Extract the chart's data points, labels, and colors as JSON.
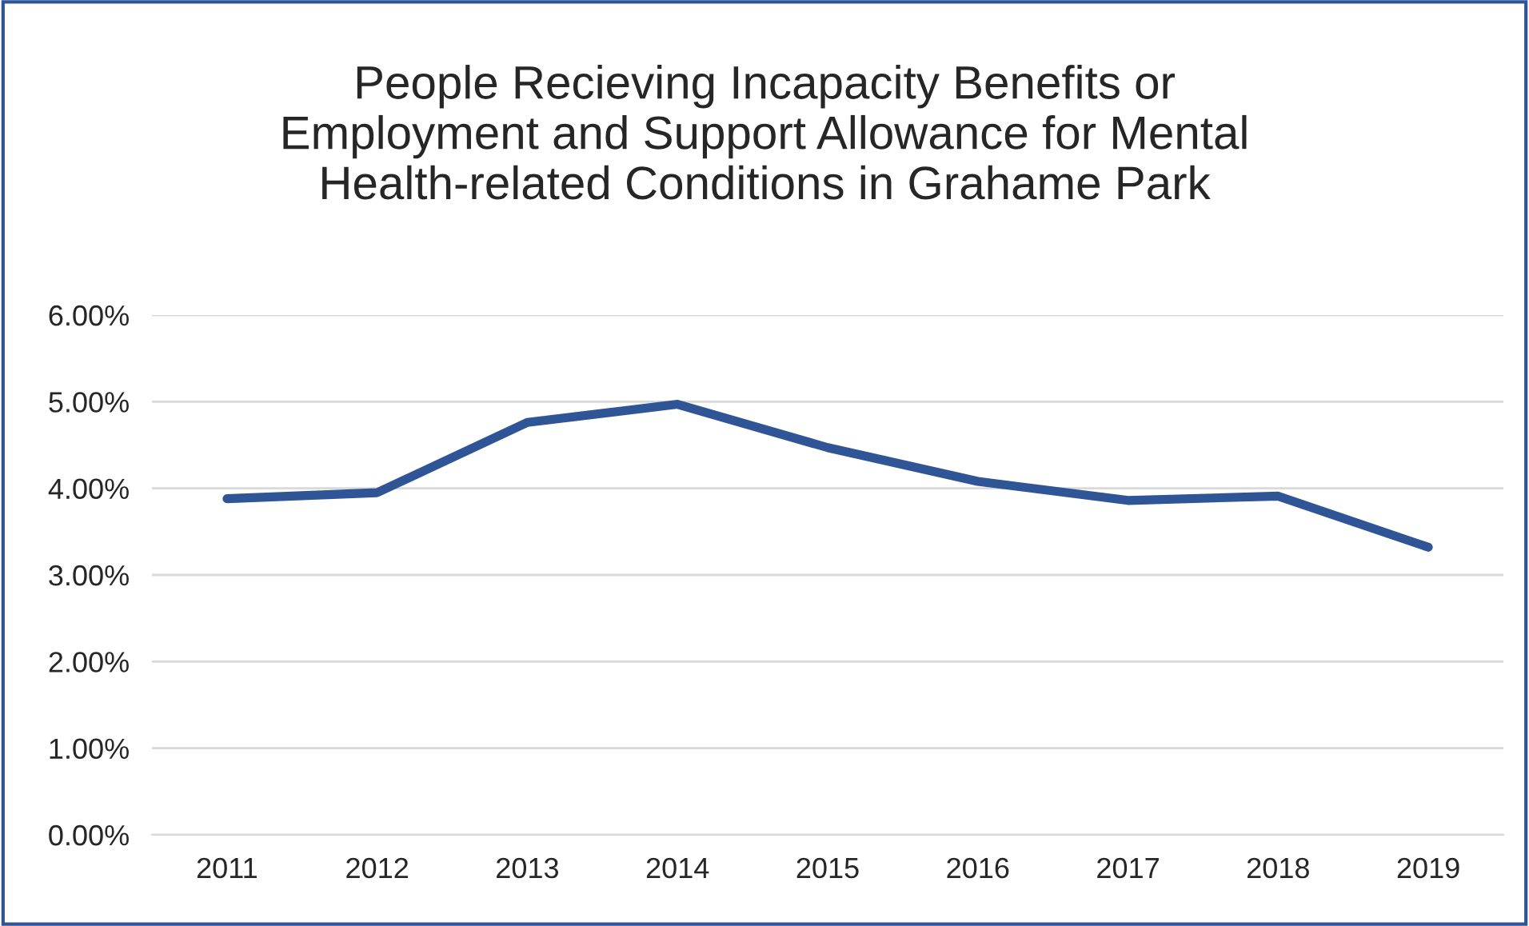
{
  "chart_data": {
    "type": "line",
    "title": "People Recieving Incapacity Benefits or\nEmployment and Support Allowance for Mental\nHealth-related Conditions in Grahame Park",
    "categories": [
      "2011",
      "2012",
      "2013",
      "2014",
      "2015",
      "2016",
      "2017",
      "2018",
      "2019"
    ],
    "series": [
      {
        "color": "#2f5597",
        "values": [
          3.88,
          3.95,
          4.76,
          4.97,
          4.47,
          4.08,
          3.86,
          3.91,
          3.32
        ]
      }
    ],
    "ylim": [
      0,
      6
    ],
    "yticks": [
      {
        "value": 0,
        "label": "0.00%"
      },
      {
        "value": 1,
        "label": "1.00%"
      },
      {
        "value": 2,
        "label": "2.00%"
      },
      {
        "value": 3,
        "label": "3.00%"
      },
      {
        "value": 4,
        "label": "4.00%"
      },
      {
        "value": 5,
        "label": "5.00%"
      },
      {
        "value": 6,
        "label": "6.00%"
      }
    ],
    "grid": "y",
    "legend": false,
    "marker": "none",
    "line_style": "solid"
  }
}
